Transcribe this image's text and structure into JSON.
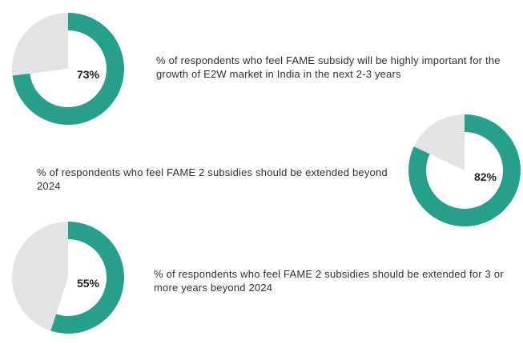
{
  "colors": {
    "accent": "#27a08b",
    "remainder": "#e1e3e4"
  },
  "chart_data": [
    {
      "type": "pie",
      "donut": true,
      "value": 73,
      "label": "73%",
      "caption": "% of respondents who feel FAME subsidy will be highly important for the growth of E2W market in India in the next 2-3 years"
    },
    {
      "type": "pie",
      "donut": true,
      "value": 82,
      "label": "82%",
      "caption": "% of respondents who feel FAME 2 subsidies should be extended beyond 2024"
    },
    {
      "type": "pie",
      "donut": true,
      "value": 55,
      "label": "55%",
      "caption": "% of respondents who feel FAME 2 subsidies should be extended for 3 or more years beyond 2024"
    }
  ]
}
